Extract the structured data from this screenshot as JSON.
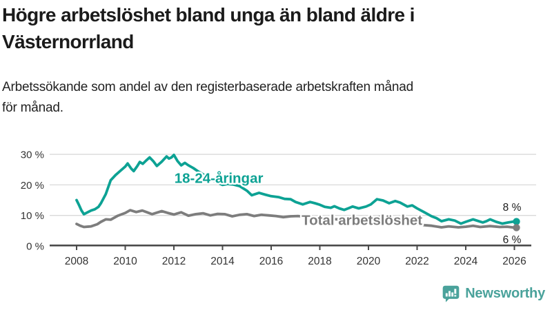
{
  "header": {
    "title_lines": [
      "Högre arbetslöshet bland unga än bland äldre i",
      "Västernorrland"
    ],
    "subtitle_lines": [
      "Arbetssökande som andel av den registerbaserade arbetskraften månad",
      "för månad."
    ]
  },
  "footer": {
    "brand": "Newsworthy"
  },
  "colors": {
    "youth": "#0da294",
    "total": "#7d7d7d",
    "grid": "#d9d9d9",
    "axis": "#4a4a4a",
    "tick_text": "#333333",
    "end_label_text": "#1a1a1a",
    "brand_teal": "#4aa29b"
  },
  "chart_data": {
    "type": "line",
    "title": "Högre arbetslöshet bland unga än bland äldre i Västernorrland",
    "subtitle": "Arbetssökande som andel av den registerbaserade arbetskraften månad för månad.",
    "unit": "%",
    "grid": "horizontal",
    "legend": "inline-labels",
    "x_axis": {
      "ticks": [
        2008,
        2010,
        2012,
        2014,
        2016,
        2018,
        2020,
        2022,
        2024,
        2026
      ],
      "range": [
        2006.9,
        2026.9
      ]
    },
    "y_axis": {
      "ticks": [
        0,
        10,
        20,
        30
      ],
      "tick_labels": [
        "0 %",
        "10 %",
        "20 %",
        "30 %"
      ],
      "range": [
        0,
        33
      ]
    },
    "series": [
      {
        "name": "18-24-åringar",
        "color": "#0da294",
        "end_label": "8 %",
        "end_value": 8,
        "label_anchor": {
          "x": 2012.02,
          "y": 20.6
        },
        "points": [
          [
            2008.0,
            15.0
          ],
          [
            2008.1,
            13.4
          ],
          [
            2008.2,
            11.6
          ],
          [
            2008.3,
            10.4
          ],
          [
            2008.45,
            11.0
          ],
          [
            2008.6,
            11.6
          ],
          [
            2008.75,
            12.0
          ],
          [
            2008.9,
            12.8
          ],
          [
            2009.0,
            14.0
          ],
          [
            2009.2,
            17.0
          ],
          [
            2009.4,
            21.5
          ],
          [
            2009.6,
            23.2
          ],
          [
            2009.8,
            24.6
          ],
          [
            2010.0,
            26.0
          ],
          [
            2010.1,
            27.0
          ],
          [
            2010.25,
            25.3
          ],
          [
            2010.35,
            24.5
          ],
          [
            2010.5,
            26.2
          ],
          [
            2010.6,
            27.5
          ],
          [
            2010.72,
            26.9
          ],
          [
            2010.85,
            27.9
          ],
          [
            2011.0,
            29.0
          ],
          [
            2011.15,
            27.8
          ],
          [
            2011.3,
            26.2
          ],
          [
            2011.5,
            27.6
          ],
          [
            2011.7,
            29.3
          ],
          [
            2011.8,
            28.6
          ],
          [
            2011.9,
            29.0
          ],
          [
            2012.0,
            29.8
          ],
          [
            2012.15,
            27.8
          ],
          [
            2012.3,
            26.4
          ],
          [
            2012.45,
            27.2
          ],
          [
            2012.6,
            26.4
          ],
          [
            2012.8,
            25.5
          ],
          [
            2013.0,
            24.4
          ],
          [
            2013.3,
            23.0
          ],
          [
            2013.6,
            21.6
          ],
          [
            2013.8,
            20.7
          ],
          [
            2014.0,
            20.0
          ],
          [
            2014.2,
            20.3
          ],
          [
            2014.45,
            20.1
          ],
          [
            2014.7,
            19.6
          ],
          [
            2015.0,
            18.1
          ],
          [
            2015.2,
            16.6
          ],
          [
            2015.5,
            17.4
          ],
          [
            2015.75,
            16.8
          ],
          [
            2016.0,
            16.3
          ],
          [
            2016.3,
            16.0
          ],
          [
            2016.55,
            15.4
          ],
          [
            2016.8,
            15.3
          ],
          [
            2017.0,
            14.4
          ],
          [
            2017.3,
            13.6
          ],
          [
            2017.6,
            14.4
          ],
          [
            2017.8,
            14.0
          ],
          [
            2018.0,
            13.5
          ],
          [
            2018.2,
            12.8
          ],
          [
            2018.45,
            12.5
          ],
          [
            2018.6,
            13.0
          ],
          [
            2018.8,
            12.3
          ],
          [
            2019.0,
            11.8
          ],
          [
            2019.2,
            12.4
          ],
          [
            2019.35,
            12.9
          ],
          [
            2019.6,
            12.3
          ],
          [
            2019.9,
            12.9
          ],
          [
            2020.1,
            13.6
          ],
          [
            2020.35,
            15.3
          ],
          [
            2020.6,
            14.9
          ],
          [
            2020.85,
            14.0
          ],
          [
            2021.1,
            14.7
          ],
          [
            2021.3,
            14.2
          ],
          [
            2021.6,
            12.9
          ],
          [
            2021.8,
            13.3
          ],
          [
            2022.0,
            12.3
          ],
          [
            2022.3,
            11.0
          ],
          [
            2022.6,
            9.7
          ],
          [
            2022.8,
            9.1
          ],
          [
            2023.0,
            8.1
          ],
          [
            2023.3,
            8.7
          ],
          [
            2023.55,
            8.3
          ],
          [
            2023.8,
            7.3
          ],
          [
            2024.0,
            7.9
          ],
          [
            2024.3,
            8.7
          ],
          [
            2024.5,
            8.2
          ],
          [
            2024.7,
            7.7
          ],
          [
            2024.85,
            8.1
          ],
          [
            2025.0,
            8.7
          ],
          [
            2025.25,
            7.9
          ],
          [
            2025.5,
            7.3
          ],
          [
            2025.75,
            7.7
          ],
          [
            2026.0,
            8.0
          ]
        ]
      },
      {
        "name": "Total arbetslöshet",
        "color": "#7d7d7d",
        "end_label": "6 %",
        "end_value": 6,
        "label_anchor": {
          "x": 2017.25,
          "y": 6.85
        },
        "points": [
          [
            2008.0,
            7.2
          ],
          [
            2008.15,
            6.6
          ],
          [
            2008.3,
            6.2
          ],
          [
            2008.6,
            6.4
          ],
          [
            2008.85,
            7.1
          ],
          [
            2009.0,
            7.9
          ],
          [
            2009.2,
            8.7
          ],
          [
            2009.4,
            8.6
          ],
          [
            2009.7,
            9.9
          ],
          [
            2010.0,
            10.8
          ],
          [
            2010.2,
            11.7
          ],
          [
            2010.45,
            11.1
          ],
          [
            2010.7,
            11.6
          ],
          [
            2010.9,
            11.0
          ],
          [
            2011.1,
            10.4
          ],
          [
            2011.3,
            10.9
          ],
          [
            2011.5,
            11.4
          ],
          [
            2011.75,
            10.8
          ],
          [
            2012.0,
            10.3
          ],
          [
            2012.3,
            11.0
          ],
          [
            2012.6,
            9.9
          ],
          [
            2012.9,
            10.4
          ],
          [
            2013.2,
            10.7
          ],
          [
            2013.5,
            10.0
          ],
          [
            2013.8,
            10.5
          ],
          [
            2014.1,
            10.4
          ],
          [
            2014.4,
            9.7
          ],
          [
            2014.7,
            10.2
          ],
          [
            2015.0,
            10.4
          ],
          [
            2015.3,
            9.8
          ],
          [
            2015.6,
            10.2
          ],
          [
            2015.9,
            10.0
          ],
          [
            2016.2,
            9.8
          ],
          [
            2016.5,
            9.4
          ],
          [
            2016.8,
            9.7
          ],
          [
            2017.1,
            9.8
          ],
          [
            2017.5,
            9.5
          ],
          [
            2018.0,
            9.1
          ],
          [
            2018.5,
            8.8
          ],
          [
            2019.0,
            8.6
          ],
          [
            2019.5,
            8.5
          ],
          [
            2020.0,
            8.8
          ],
          [
            2020.4,
            9.5
          ],
          [
            2020.8,
            9.2
          ],
          [
            2021.2,
            8.9
          ],
          [
            2021.6,
            8.2
          ],
          [
            2022.0,
            7.2
          ],
          [
            2022.3,
            6.8
          ],
          [
            2022.6,
            6.6
          ],
          [
            2023.0,
            6.1
          ],
          [
            2023.3,
            6.4
          ],
          [
            2023.7,
            6.1
          ],
          [
            2024.0,
            6.3
          ],
          [
            2024.3,
            6.6
          ],
          [
            2024.6,
            6.2
          ],
          [
            2025.0,
            6.5
          ],
          [
            2025.4,
            6.2
          ],
          [
            2025.7,
            6.3
          ],
          [
            2026.0,
            6.0
          ]
        ]
      }
    ]
  }
}
